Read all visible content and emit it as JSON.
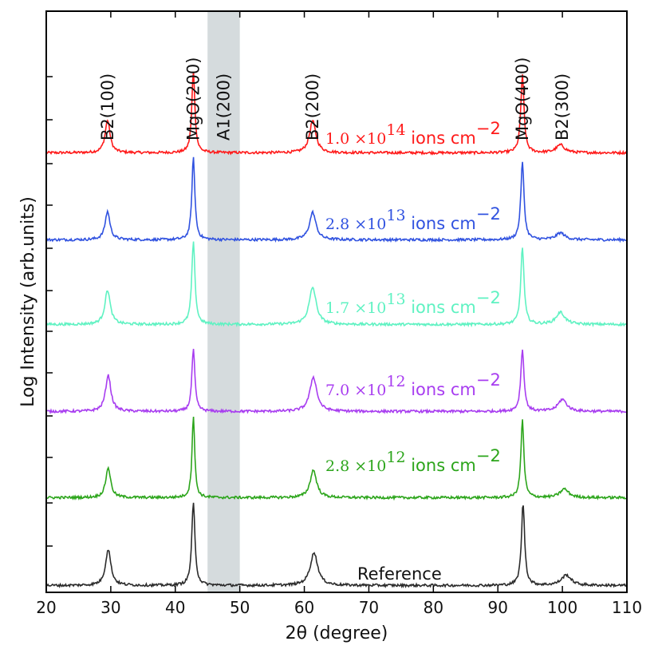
{
  "chart_data": {
    "type": "line",
    "title": "",
    "xlabel": "2θ (degree)",
    "ylabel": "Log Intensity (arb.units)",
    "xlim": [
      20,
      110
    ],
    "xticks": [
      20,
      30,
      40,
      50,
      60,
      70,
      80,
      90,
      100,
      110
    ],
    "grid": false,
    "shaded_region": {
      "label": "A1(200)",
      "x_range": [
        45,
        50
      ],
      "color": "#d5dbdd"
    },
    "peak_labels": [
      {
        "label": "B2(100)",
        "x": 29.5
      },
      {
        "label": "MgO(200)",
        "x": 42.8
      },
      {
        "label": "A1(200)",
        "x": 47.5
      },
      {
        "label": "B2(200)",
        "x": 61.3
      },
      {
        "label": "MgO(400)",
        "x": 93.8
      },
      {
        "label": "B2(300)",
        "x": 100.0
      }
    ],
    "series": [
      {
        "name": "1.0 ×10^14 ions cm^-2",
        "mantissa": "1.0",
        "exponent": "14",
        "unit": "ions cm",
        "unit_exp": "−2",
        "color": "#ff1a1a",
        "peaks": [
          {
            "x": 29.5,
            "h": 0.38,
            "w": 0.45
          },
          {
            "x": 42.8,
            "h": 0.95,
            "w": 0.28
          },
          {
            "x": 61.3,
            "h": 0.37,
            "w": 0.6
          },
          {
            "x": 93.8,
            "h": 0.9,
            "w": 0.3
          },
          {
            "x": 99.7,
            "h": 0.09,
            "w": 0.8
          }
        ]
      },
      {
        "name": "2.8 ×10^13 ions cm^-2",
        "mantissa": "2.8",
        "exponent": "13",
        "unit": "ions cm",
        "unit_exp": "−2",
        "color": "#3052e0",
        "peaks": [
          {
            "x": 29.5,
            "h": 0.33,
            "w": 0.45
          },
          {
            "x": 42.8,
            "h": 0.95,
            "w": 0.28
          },
          {
            "x": 61.3,
            "h": 0.32,
            "w": 0.6
          },
          {
            "x": 93.8,
            "h": 0.9,
            "w": 0.3
          },
          {
            "x": 99.7,
            "h": 0.08,
            "w": 0.8
          }
        ]
      },
      {
        "name": "1.7 ×10^13 ions cm^-2",
        "mantissa": "1.7",
        "exponent": "13",
        "unit": "ions cm",
        "unit_exp": "−2",
        "color": "#5ff2c2",
        "peaks": [
          {
            "x": 29.5,
            "h": 0.4,
            "w": 0.5
          },
          {
            "x": 42.8,
            "h": 0.95,
            "w": 0.3
          },
          {
            "x": 61.3,
            "h": 0.43,
            "w": 0.65
          },
          {
            "x": 93.8,
            "h": 0.9,
            "w": 0.3
          },
          {
            "x": 99.7,
            "h": 0.14,
            "w": 0.8
          }
        ]
      },
      {
        "name": "7.0 ×10^12 ions cm^-2",
        "mantissa": "7.0",
        "exponent": "12",
        "unit": "ions cm",
        "unit_exp": "−2",
        "color": "#a83df0",
        "peaks": [
          {
            "x": 29.6,
            "h": 0.42,
            "w": 0.5
          },
          {
            "x": 42.8,
            "h": 0.72,
            "w": 0.28
          },
          {
            "x": 61.4,
            "h": 0.4,
            "w": 0.65
          },
          {
            "x": 93.8,
            "h": 0.72,
            "w": 0.3
          },
          {
            "x": 100.0,
            "h": 0.14,
            "w": 0.8
          }
        ]
      },
      {
        "name": "2.8 ×10^12 ions cm^-2",
        "mantissa": "2.8",
        "exponent": "12",
        "unit": "ions cm",
        "unit_exp": "−2",
        "color": "#2ca51b",
        "peaks": [
          {
            "x": 29.6,
            "h": 0.35,
            "w": 0.45
          },
          {
            "x": 42.8,
            "h": 0.95,
            "w": 0.25
          },
          {
            "x": 61.4,
            "h": 0.32,
            "w": 0.6
          },
          {
            "x": 93.8,
            "h": 0.9,
            "w": 0.28
          },
          {
            "x": 100.3,
            "h": 0.1,
            "w": 0.8
          }
        ]
      },
      {
        "name": "Reference",
        "label": "Reference",
        "color": "#2b2b2b",
        "peaks": [
          {
            "x": 29.6,
            "h": 0.42,
            "w": 0.5
          },
          {
            "x": 42.8,
            "h": 0.95,
            "w": 0.3
          },
          {
            "x": 61.5,
            "h": 0.38,
            "w": 0.7
          },
          {
            "x": 93.9,
            "h": 0.95,
            "w": 0.3
          },
          {
            "x": 100.6,
            "h": 0.12,
            "w": 0.9
          }
        ]
      }
    ]
  }
}
